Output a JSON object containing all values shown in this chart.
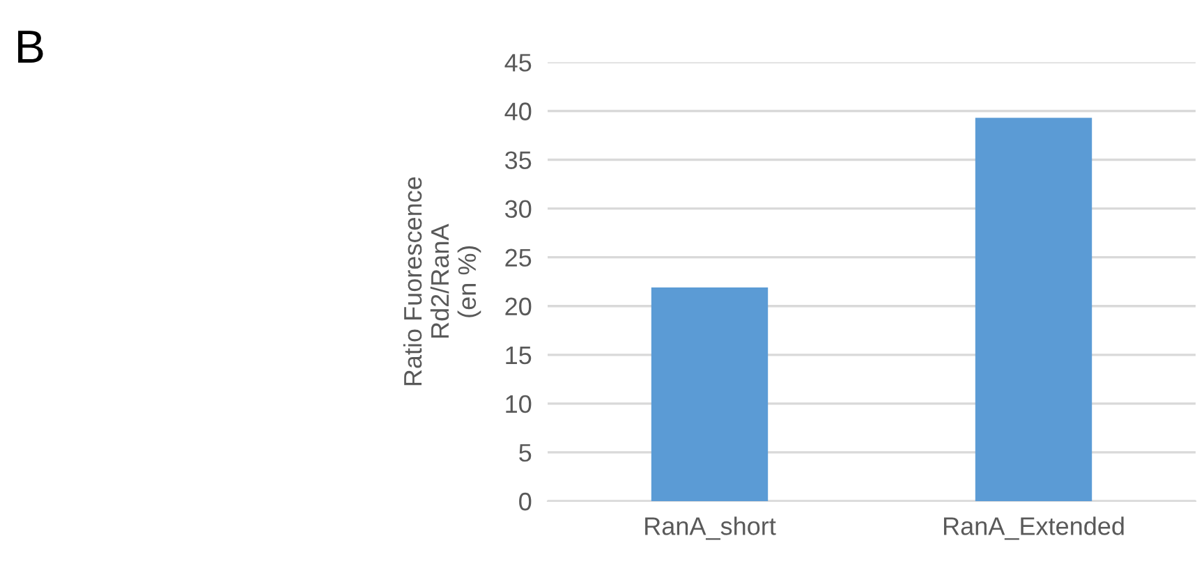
{
  "chart_data": {
    "type": "bar",
    "ylabel": "Ratio Fuorescence\nRd2/RanA\n(en %)",
    "categories": [
      "RanA_short",
      "RanA_Extended"
    ],
    "values": [
      21.9,
      39.3
    ],
    "color": "#5b9bd5",
    "ylim": [
      0,
      45
    ],
    "yticks": [
      0,
      5,
      10,
      15,
      20,
      25,
      30,
      35,
      40,
      45
    ],
    "grid": "y",
    "legend": false,
    "annotations": [
      "B"
    ]
  }
}
